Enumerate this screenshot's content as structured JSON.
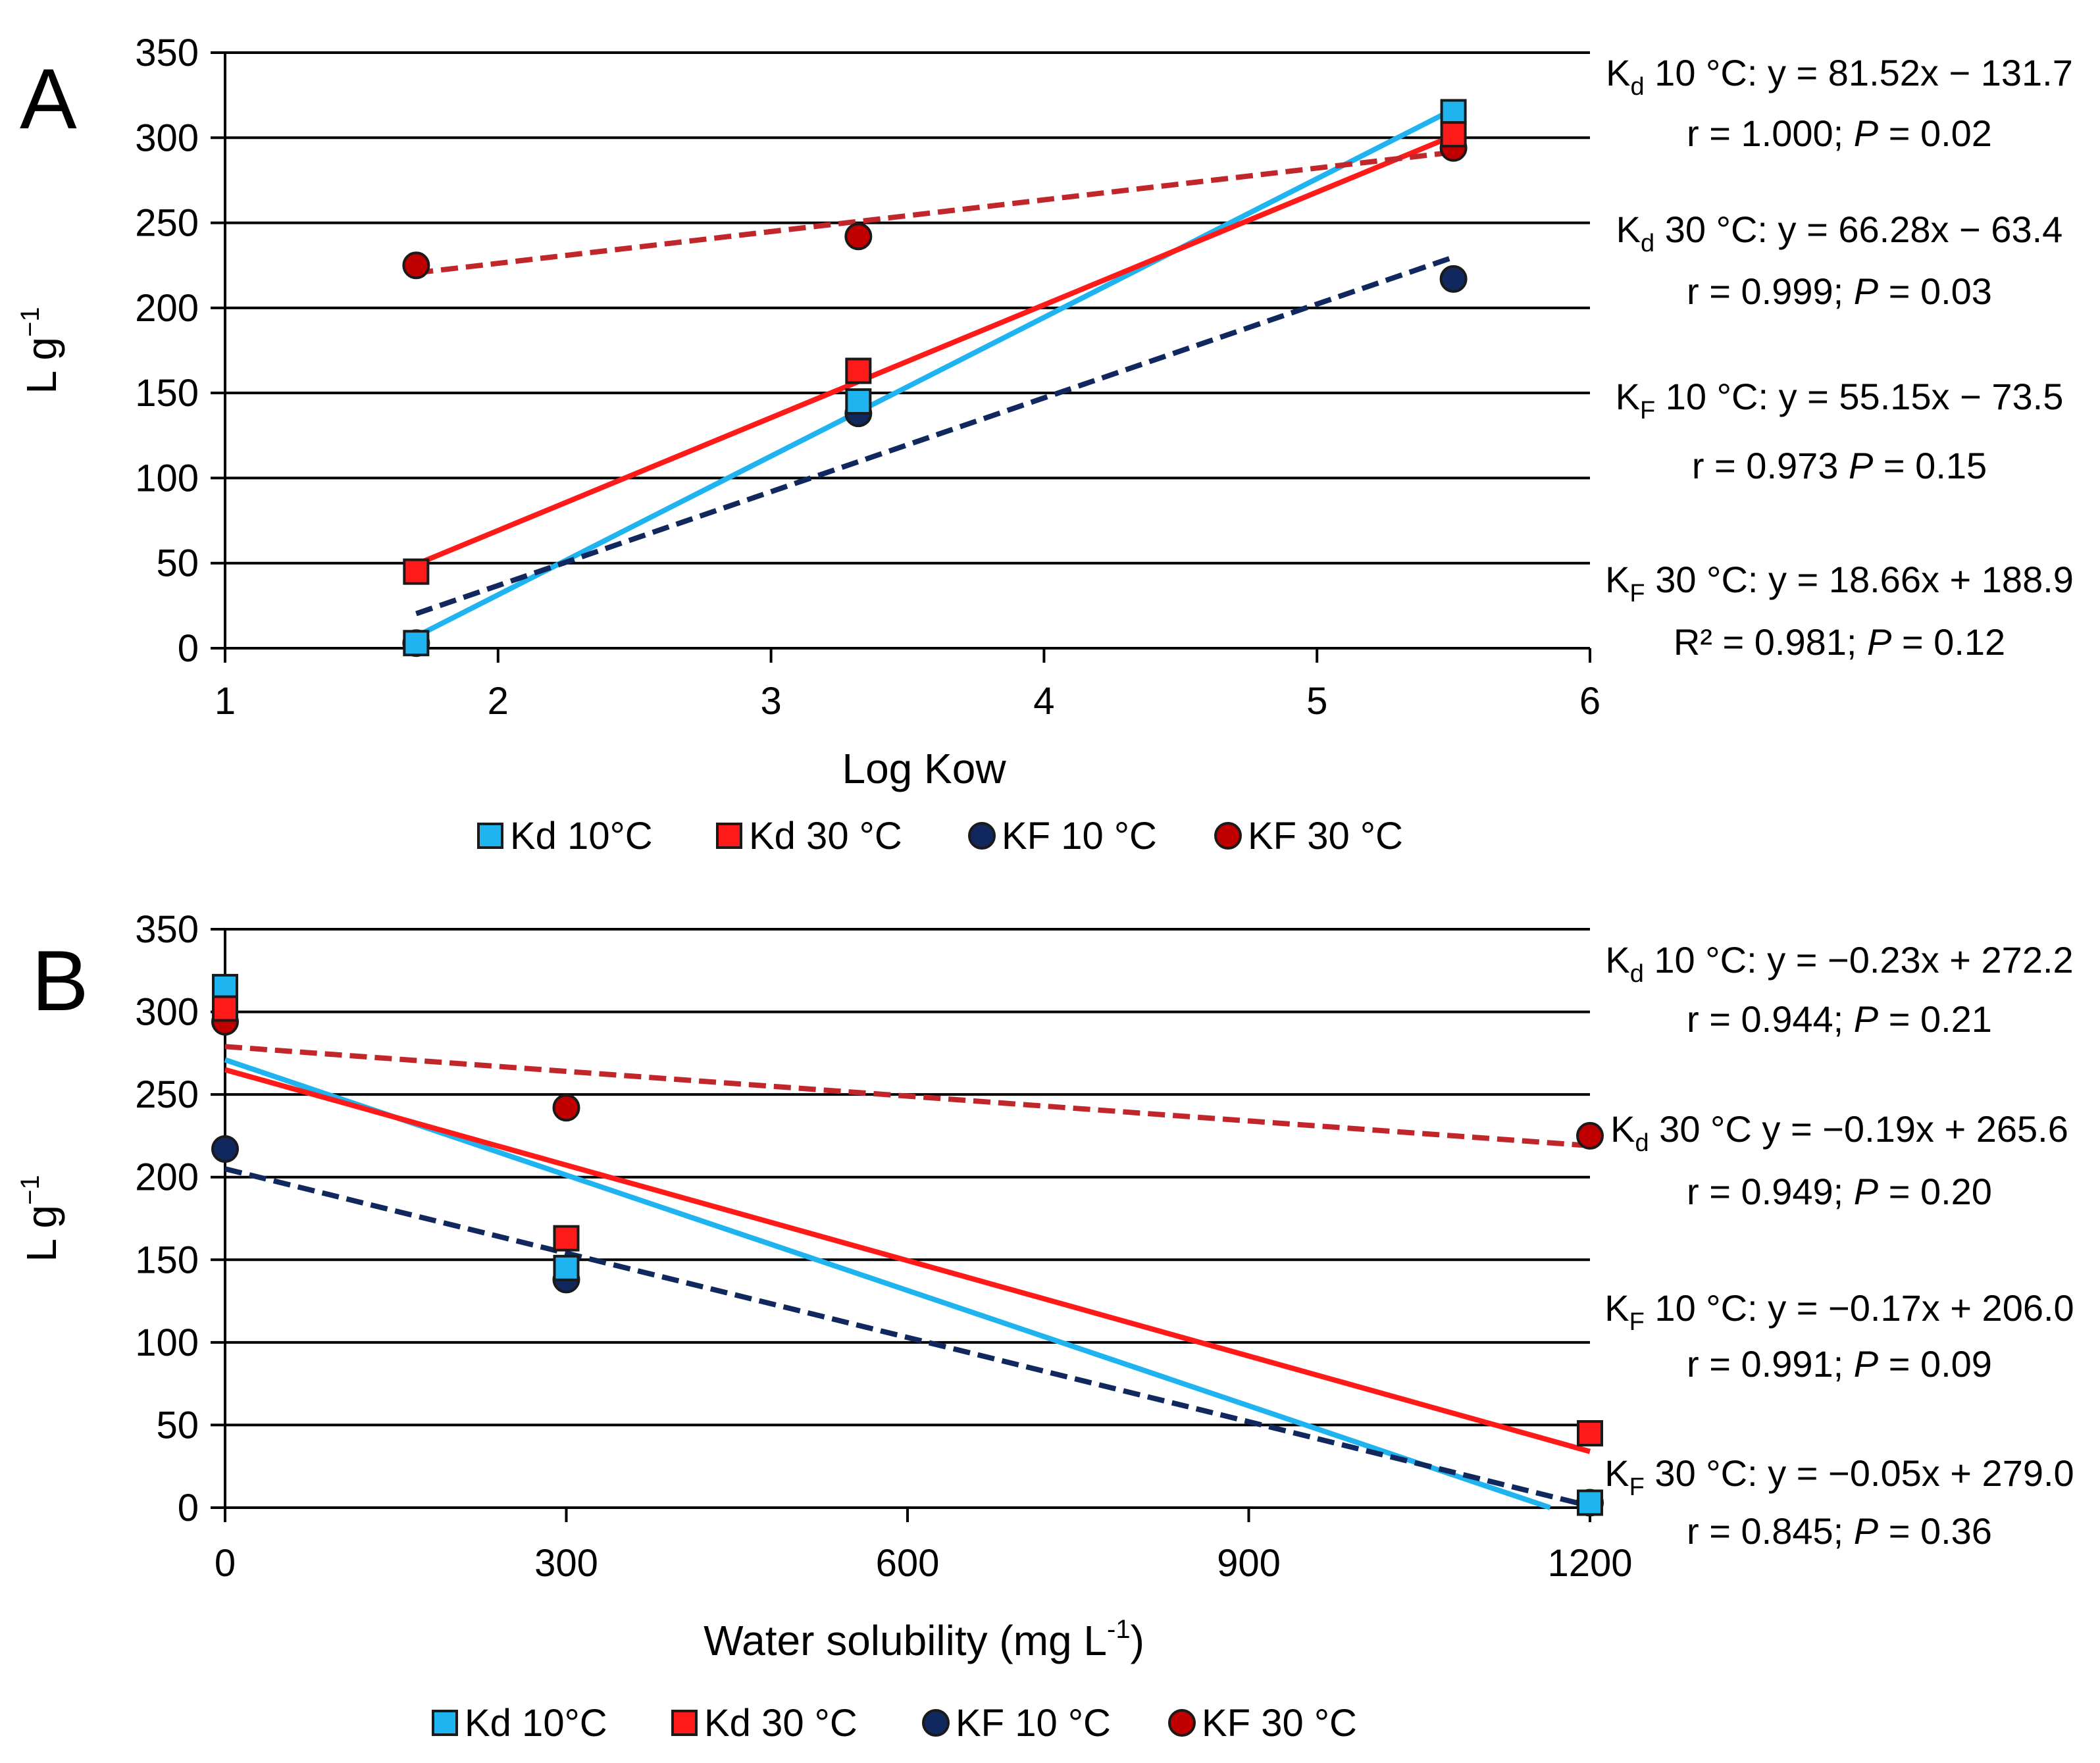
{
  "colors": {
    "kd10": "#1fb4ef",
    "kd30": "#ff1a1a",
    "kf10": "#10285e",
    "kf30": "#c00000",
    "kf30_line": "#c0262a",
    "marker_stroke": "#1a1a1a",
    "grid": "#000000"
  },
  "chart_data": [
    {
      "type": "scatter",
      "panel_label": "A",
      "xlabel": "Log Kow",
      "ylabel": "L g",
      "ylabel_sup": "−1",
      "xlim": [
        1,
        6
      ],
      "ylim": [
        0,
        350
      ],
      "xticks": [
        1,
        2,
        3,
        4,
        5,
        6
      ],
      "xtick_labels": [
        "1",
        "2",
        "3",
        "4",
        "5",
        "6"
      ],
      "yticks": [
        0,
        50,
        100,
        150,
        200,
        250,
        300,
        350
      ],
      "ytick_labels": [
        "0",
        "50",
        "100",
        "150",
        "200",
        "250",
        "300",
        "350"
      ],
      "grid": "horizontal",
      "legend_position": "bottom",
      "series": [
        {
          "name": "Kd 10°C",
          "marker": "square",
          "color_key": "kd10",
          "x": [
            1.7,
            3.32,
            5.5
          ],
          "y": [
            3,
            145,
            315
          ],
          "trend": {
            "x": [
              1.7,
              5.5
            ],
            "y": [
              6.9,
              316.7
            ],
            "style": "solid"
          }
        },
        {
          "name": "Kd 30 °C",
          "marker": "square",
          "color_key": "kd30",
          "x": [
            1.7,
            3.32,
            5.5
          ],
          "y": [
            45,
            163,
            302
          ],
          "trend": {
            "x": [
              1.7,
              5.5
            ],
            "y": [
              49.3,
              301.2
            ],
            "style": "solid"
          }
        },
        {
          "name": "KF 10 °C",
          "marker": "circle",
          "color_key": "kf10",
          "x": [
            1.7,
            3.32,
            5.5
          ],
          "y": [
            3,
            138,
            217
          ],
          "trend": {
            "x": [
              1.7,
              5.5
            ],
            "y": [
              20.3,
              229.8
            ],
            "style": "dashed"
          }
        },
        {
          "name": "KF 30 °C",
          "marker": "circle",
          "color_key": "kf30",
          "x": [
            1.7,
            3.32,
            5.5
          ],
          "y": [
            225,
            242,
            294
          ],
          "trend": {
            "x": [
              1.7,
              5.5
            ],
            "y": [
              220.6,
              291.5
            ],
            "style": "dashed"
          }
        }
      ],
      "annotations": [
        {
          "k": "K",
          "sub": "d",
          "rest": " 10 °C: y = 81.52x − 131.7",
          "line2_pre": "r = 1.000; ",
          "line2_italic": "P",
          "line2_post": " = 0.02"
        },
        {
          "k": "K",
          "sub": "d",
          "rest": " 30 °C: y = 66.28x − 63.4",
          "line2_pre": "r = 0.999; ",
          "line2_italic": "P",
          "line2_post": " = 0.03"
        },
        {
          "k": "K",
          "sub": "F",
          "rest": " 10 °C: y = 55.15x − 73.5",
          "line2_pre": "r = 0.973 ",
          "line2_italic": "P",
          "line2_post": " = 0.15"
        },
        {
          "k": "K",
          "sub": "F",
          "rest": " 30 °C: y = 18.66x + 188.9",
          "line2_pre": "R² = 0.981; ",
          "line2_italic": "P",
          "line2_post": " = 0.12"
        }
      ]
    },
    {
      "type": "scatter",
      "panel_label": "B",
      "xlabel": "Water solubility (mg L",
      "xlabel_sup": "-1",
      "xlabel_end": ")",
      "ylabel": "L g",
      "ylabel_sup": "−1",
      "xlim": [
        0,
        1200
      ],
      "ylim": [
        0,
        350
      ],
      "xticks": [
        0,
        300,
        600,
        900,
        1200
      ],
      "xtick_labels": [
        "0",
        "300",
        "600",
        "900",
        "1200"
      ],
      "yticks": [
        0,
        50,
        100,
        150,
        200,
        250,
        300,
        350
      ],
      "ytick_labels": [
        "0",
        "50",
        "100",
        "150",
        "200",
        "250",
        "300",
        "350"
      ],
      "grid": "horizontal",
      "legend_position": "bottom",
      "series": [
        {
          "name": "Kd 10°C",
          "marker": "square",
          "color_key": "kd10",
          "x": [
            0,
            300,
            1200
          ],
          "y": [
            315,
            145,
            3
          ],
          "trend": {
            "x": [
              0,
              1165
            ],
            "y": [
              271,
              0
            ],
            "style": "solid"
          }
        },
        {
          "name": "Kd 30 °C",
          "marker": "square",
          "color_key": "kd30",
          "x": [
            0,
            300,
            1200
          ],
          "y": [
            302,
            163,
            45
          ],
          "trend": {
            "x": [
              0,
              1200
            ],
            "y": [
              265,
              34
            ],
            "style": "solid"
          }
        },
        {
          "name": "KF 10 °C",
          "marker": "circle",
          "color_key": "kf10",
          "x": [
            0,
            300,
            1200
          ],
          "y": [
            217,
            138,
            3
          ],
          "trend": {
            "x": [
              0,
              1200
            ],
            "y": [
              205,
              1
            ],
            "style": "dashed"
          }
        },
        {
          "name": "KF 30 °C",
          "marker": "circle",
          "color_key": "kf30",
          "x": [
            0,
            300,
            1200
          ],
          "y": [
            294,
            242,
            225
          ],
          "trend": {
            "x": [
              0,
              1200
            ],
            "y": [
              279,
              219
            ],
            "style": "dashed"
          }
        }
      ],
      "annotations": [
        {
          "k": "K",
          "sub": "d",
          "rest": " 10 °C: y = −0.23x + 272.2",
          "line2_pre": "r = 0.944; ",
          "line2_italic": "P",
          "line2_post": " = 0.21"
        },
        {
          "k": "K",
          "sub": "d",
          "rest": " 30 °C y = −0.19x + 265.6",
          "line2_pre": "r = 0.949; ",
          "line2_italic": "P",
          "line2_post": " = 0.20"
        },
        {
          "k": "K",
          "sub": "F",
          "rest": " 10 °C: y = −0.17x + 206.0",
          "line2_pre": "r = 0.991; ",
          "line2_italic": "P",
          "line2_post": " = 0.09"
        },
        {
          "k": "K",
          "sub": "F",
          "rest": " 30 °C: y = −0.05x + 279.0",
          "line2_pre": "r = 0.845; ",
          "line2_italic": "P",
          "line2_post": " =  0.36"
        }
      ]
    }
  ]
}
